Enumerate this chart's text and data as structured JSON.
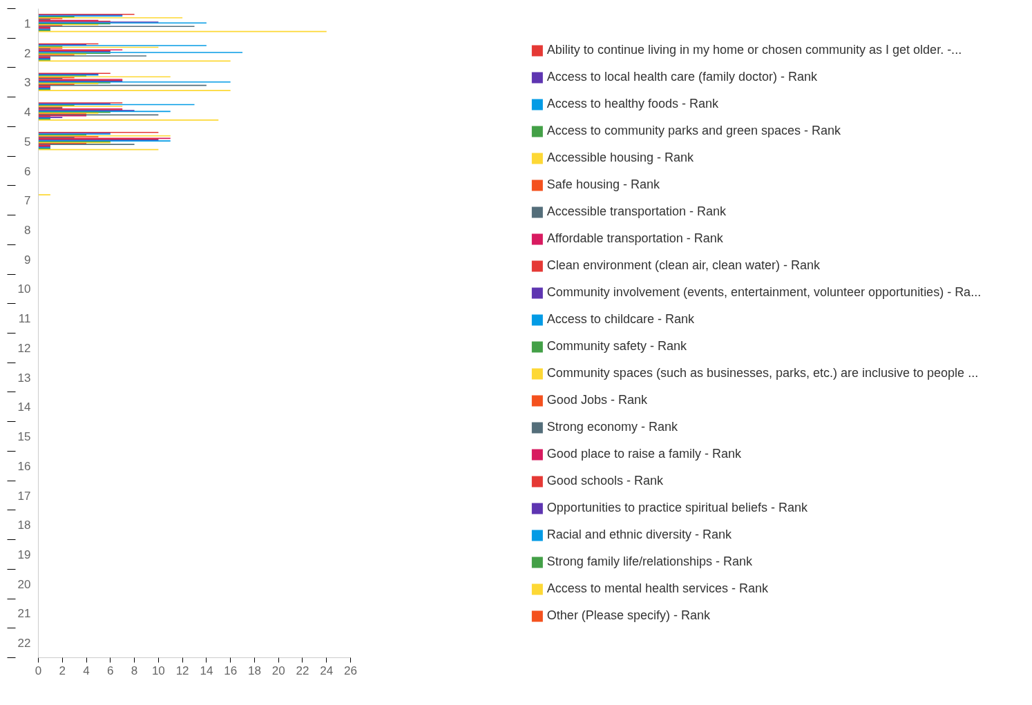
{
  "chart_data": {
    "type": "bar",
    "orientation": "horizontal",
    "categories": [
      "1",
      "2",
      "3",
      "4",
      "5",
      "6",
      "7",
      "8",
      "9",
      "10",
      "11",
      "12",
      "13",
      "14",
      "15",
      "16",
      "17",
      "18",
      "19",
      "20",
      "21",
      "22"
    ],
    "xlim": [
      0,
      26
    ],
    "xticks": [
      0,
      2,
      4,
      6,
      8,
      10,
      12,
      14,
      16,
      18,
      20,
      22,
      24,
      26
    ],
    "grid": false,
    "legend": "right",
    "series": [
      {
        "name": "Ability to continue living in my home or chosen community as I get older. -...",
        "color": "#e53935",
        "values": [
          8,
          5,
          6,
          7,
          10,
          0,
          0,
          0,
          0,
          0,
          0,
          0,
          0,
          0,
          0,
          0,
          0,
          0,
          0,
          0,
          0,
          0
        ]
      },
      {
        "name": "Access to local health care (family doctor) - Rank",
        "color": "#5e35b1",
        "values": [
          7,
          4,
          5,
          6,
          6,
          0,
          0,
          0,
          0,
          0,
          0,
          0,
          0,
          0,
          0,
          0,
          0,
          0,
          0,
          0,
          0,
          0
        ]
      },
      {
        "name": "Access to healthy foods - Rank",
        "color": "#039be5",
        "values": [
          7,
          14,
          5,
          13,
          6,
          0,
          0,
          0,
          0,
          0,
          0,
          0,
          0,
          0,
          0,
          0,
          0,
          0,
          0,
          0,
          0,
          0
        ]
      },
      {
        "name": "Access to community parks and green spaces - Rank",
        "color": "#43a047",
        "values": [
          3,
          2,
          4,
          3,
          4,
          0,
          0,
          0,
          0,
          0,
          0,
          0,
          0,
          0,
          0,
          0,
          0,
          0,
          0,
          0,
          0,
          0
        ]
      },
      {
        "name": "Accessible housing - Rank",
        "color": "#fdd835",
        "values": [
          12,
          10,
          11,
          7,
          11,
          0,
          1,
          0,
          0,
          0,
          0,
          0,
          0,
          0,
          0,
          0,
          0,
          0,
          0,
          0,
          0,
          0
        ]
      },
      {
        "name": "Safe housing - Rank",
        "color": "#f4511e",
        "values": [
          2,
          2,
          3,
          2,
          5,
          0,
          0,
          0,
          0,
          0,
          0,
          0,
          0,
          0,
          0,
          0,
          0,
          0,
          0,
          0,
          0,
          0
        ]
      },
      {
        "name": "Accessible transportation - Rank",
        "color": "#546e7a",
        "values": [
          1,
          1,
          2,
          2,
          3,
          0,
          0,
          0,
          0,
          0,
          0,
          0,
          0,
          0,
          0,
          0,
          0,
          0,
          0,
          0,
          0,
          0
        ]
      },
      {
        "name": "Affordable transportation - Rank",
        "color": "#d81b60",
        "values": [
          5,
          7,
          7,
          7,
          11,
          0,
          0,
          0,
          0,
          0,
          0,
          0,
          0,
          0,
          0,
          0,
          0,
          0,
          0,
          0,
          0,
          0
        ]
      },
      {
        "name": "Clean environment (clean air, clean water) - Rank",
        "color": "#e53935",
        "values": [
          6,
          6,
          7,
          7,
          10,
          0,
          0,
          0,
          0,
          0,
          0,
          0,
          0,
          0,
          0,
          0,
          0,
          0,
          0,
          0,
          0,
          0
        ]
      },
      {
        "name": "Community involvement (events, entertainment, volunteer opportunities) - Ra...",
        "color": "#5e35b1",
        "values": [
          10,
          6,
          7,
          8,
          10,
          0,
          0,
          0,
          0,
          0,
          0,
          0,
          0,
          0,
          0,
          0,
          0,
          0,
          0,
          0,
          0,
          0
        ]
      },
      {
        "name": "Access to childcare - Rank",
        "color": "#039be5",
        "values": [
          14,
          17,
          16,
          11,
          11,
          0,
          0,
          0,
          0,
          0,
          0,
          0,
          0,
          0,
          0,
          0,
          0,
          0,
          0,
          0,
          0,
          0
        ]
      },
      {
        "name": "Community safety - Rank",
        "color": "#43a047",
        "values": [
          6,
          6,
          6,
          6,
          6,
          0,
          0,
          0,
          0,
          0,
          0,
          0,
          0,
          0,
          0,
          0,
          0,
          0,
          0,
          0,
          0,
          0
        ]
      },
      {
        "name": "Community spaces (such as businesses, parks, etc.) are inclusive to people ...",
        "color": "#fdd835",
        "values": [
          5,
          4,
          5,
          5,
          6,
          0,
          0,
          0,
          0,
          0,
          0,
          0,
          0,
          0,
          0,
          0,
          0,
          0,
          0,
          0,
          0,
          0
        ]
      },
      {
        "name": "Good Jobs - Rank",
        "color": "#f4511e",
        "values": [
          2,
          3,
          3,
          4,
          4,
          0,
          0,
          0,
          0,
          0,
          0,
          0,
          0,
          0,
          0,
          0,
          0,
          0,
          0,
          0,
          0,
          0
        ]
      },
      {
        "name": "Strong economy - Rank",
        "color": "#546e7a",
        "values": [
          13,
          9,
          14,
          10,
          8,
          0,
          0,
          0,
          0,
          0,
          0,
          0,
          0,
          0,
          0,
          0,
          0,
          0,
          0,
          0,
          0,
          0
        ]
      },
      {
        "name": "Good place to raise a family - Rank",
        "color": "#d81b60",
        "values": [
          1,
          1,
          1,
          4,
          1,
          0,
          0,
          0,
          0,
          0,
          0,
          0,
          0,
          0,
          0,
          0,
          0,
          0,
          0,
          0,
          0,
          0
        ]
      },
      {
        "name": "Good schools - Rank",
        "color": "#e53935",
        "values": [
          1,
          1,
          1,
          1,
          1,
          0,
          0,
          0,
          0,
          0,
          0,
          0,
          0,
          0,
          0,
          0,
          0,
          0,
          0,
          0,
          0,
          0
        ]
      },
      {
        "name": "Opportunities to practice spiritual beliefs - Rank",
        "color": "#5e35b1",
        "values": [
          1,
          1,
          1,
          2,
          1,
          0,
          0,
          0,
          0,
          0,
          0,
          0,
          0,
          0,
          0,
          0,
          0,
          0,
          0,
          0,
          0,
          0
        ]
      },
      {
        "name": "Racial and ethnic diversity - Rank",
        "color": "#039be5",
        "values": [
          1,
          1,
          1,
          1,
          1,
          0,
          0,
          0,
          0,
          0,
          0,
          0,
          0,
          0,
          0,
          0,
          0,
          0,
          0,
          0,
          0,
          0
        ]
      },
      {
        "name": "Strong family life/relationships - Rank",
        "color": "#43a047",
        "values": [
          1,
          1,
          1,
          1,
          1,
          0,
          0,
          0,
          0,
          0,
          0,
          0,
          0,
          0,
          0,
          0,
          0,
          0,
          0,
          0,
          0,
          0
        ]
      },
      {
        "name": "Access to mental health services - Rank",
        "color": "#fdd835",
        "values": [
          24,
          16,
          16,
          15,
          10,
          0,
          0,
          0,
          0,
          0,
          0,
          0,
          0,
          0,
          0,
          0,
          0,
          0,
          0,
          0,
          0,
          0
        ]
      },
      {
        "name": "Other (Please specify) - Rank",
        "color": "#f4511e",
        "values": [
          0,
          0,
          0,
          0,
          0,
          0,
          0,
          0,
          0,
          0,
          0,
          0,
          0,
          0,
          0,
          0,
          0,
          0,
          0,
          0,
          0,
          0
        ]
      }
    ]
  }
}
